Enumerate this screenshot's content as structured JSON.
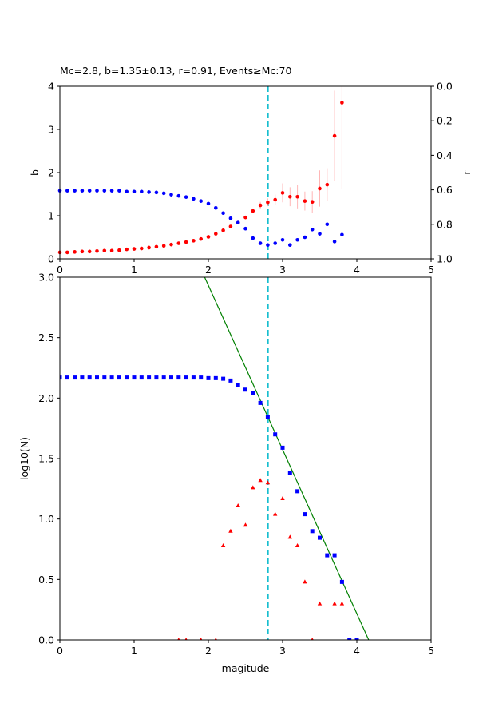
{
  "chart_data": [
    {
      "type": "scatter",
      "title": "Mc=2.8, b=1.35±0.13, r=0.91, Events≥Mc:70",
      "xlabel": "",
      "ylabel": "b",
      "ylabel_right": "r",
      "xlim": [
        0,
        5
      ],
      "ylim": [
        0,
        4
      ],
      "ylim_right": [
        1.0,
        0.0
      ],
      "x_ticks": [
        "0",
        "1",
        "2",
        "3",
        "4",
        "5"
      ],
      "y_ticks": [
        "0",
        "1",
        "2",
        "3",
        "4"
      ],
      "y_right_ticks": [
        "0.0",
        "0.2",
        "0.4",
        "0.6",
        "0.8",
        "1.0"
      ],
      "mc_line": {
        "x": 2.8,
        "color": "#17becf",
        "style": "dashed"
      },
      "series": [
        {
          "role": "b-value",
          "axis": "left",
          "color": "#ff0000",
          "error_color": "#ffb6b6",
          "x": [
            0.0,
            0.1,
            0.2,
            0.3,
            0.4,
            0.5,
            0.6,
            0.7,
            0.8,
            0.9,
            1.0,
            1.1,
            1.2,
            1.3,
            1.4,
            1.5,
            1.6,
            1.7,
            1.8,
            1.9,
            2.0,
            2.1,
            2.2,
            2.3,
            2.4,
            2.5,
            2.6,
            2.7,
            2.8,
            2.9,
            3.0,
            3.1,
            3.2,
            3.3,
            3.4,
            3.5,
            3.6,
            3.7,
            3.8
          ],
          "y": [
            0.15,
            0.15,
            0.16,
            0.17,
            0.17,
            0.18,
            0.19,
            0.19,
            0.2,
            0.22,
            0.23,
            0.24,
            0.26,
            0.28,
            0.3,
            0.33,
            0.36,
            0.39,
            0.42,
            0.46,
            0.51,
            0.58,
            0.66,
            0.75,
            0.84,
            0.96,
            1.11,
            1.24,
            1.31,
            1.37,
            1.53,
            1.44,
            1.44,
            1.34,
            1.32,
            1.63,
            1.72,
            2.85,
            3.62
          ],
          "err": [
            0,
            0,
            0,
            0,
            0,
            0,
            0,
            0,
            0,
            0,
            0,
            0,
            0,
            0,
            0,
            0,
            0,
            0,
            0,
            0,
            0,
            0,
            0,
            0,
            0,
            0,
            0,
            0.08,
            0.09,
            0.12,
            0.22,
            0.22,
            0.27,
            0.22,
            0.25,
            0.42,
            0.38,
            1.05,
            2.0
          ]
        },
        {
          "role": "r-value",
          "axis": "right",
          "color": "#0000ff",
          "x": [
            0.0,
            0.1,
            0.2,
            0.3,
            0.4,
            0.5,
            0.6,
            0.7,
            0.8,
            0.9,
            1.0,
            1.1,
            1.2,
            1.3,
            1.4,
            1.5,
            1.6,
            1.7,
            1.8,
            1.9,
            2.0,
            2.1,
            2.2,
            2.3,
            2.4,
            2.5,
            2.6,
            2.7,
            2.8,
            2.9,
            3.0,
            3.1,
            3.2,
            3.3,
            3.4,
            3.5,
            3.6,
            3.7,
            3.8
          ],
          "y": [
            0.605,
            0.605,
            0.605,
            0.605,
            0.605,
            0.605,
            0.605,
            0.605,
            0.605,
            0.61,
            0.61,
            0.61,
            0.613,
            0.615,
            0.62,
            0.628,
            0.635,
            0.642,
            0.652,
            0.665,
            0.68,
            0.705,
            0.735,
            0.765,
            0.79,
            0.825,
            0.88,
            0.91,
            0.92,
            0.91,
            0.89,
            0.92,
            0.89,
            0.875,
            0.83,
            0.855,
            0.8,
            0.9,
            0.86
          ]
        }
      ]
    },
    {
      "type": "scatter",
      "title": "",
      "xlabel": "magitude",
      "ylabel": "log10(N)",
      "xlim": [
        0,
        5
      ],
      "ylim": [
        0,
        3
      ],
      "x_ticks": [
        "0",
        "1",
        "2",
        "3",
        "4",
        "5"
      ],
      "y_ticks": [
        "0.0",
        "0.5",
        "1.0",
        "1.5",
        "2.0",
        "2.5",
        "3.0"
      ],
      "mc_line": {
        "x": 2.8,
        "color": "#17becf",
        "style": "dashed"
      },
      "fit_line": {
        "color": "#008000",
        "points": [
          [
            1.95,
            3.0
          ],
          [
            4.16,
            0.0
          ]
        ]
      },
      "series": [
        {
          "role": "cumulative",
          "marker": "square",
          "color": "#0000ff",
          "x": [
            0.0,
            0.1,
            0.2,
            0.3,
            0.4,
            0.5,
            0.6,
            0.7,
            0.8,
            0.9,
            1.0,
            1.1,
            1.2,
            1.3,
            1.4,
            1.5,
            1.6,
            1.7,
            1.8,
            1.9,
            2.0,
            2.1,
            2.2,
            2.3,
            2.4,
            2.5,
            2.6,
            2.7,
            2.8,
            2.9,
            3.0,
            3.1,
            3.2,
            3.3,
            3.4,
            3.5,
            3.6,
            3.7,
            3.8,
            3.9,
            4.0
          ],
          "y": [
            2.17,
            2.17,
            2.17,
            2.17,
            2.17,
            2.17,
            2.17,
            2.17,
            2.17,
            2.17,
            2.17,
            2.17,
            2.17,
            2.17,
            2.17,
            2.17,
            2.17,
            2.17,
            2.17,
            2.17,
            2.165,
            2.165,
            2.16,
            2.145,
            2.11,
            2.07,
            2.04,
            1.96,
            1.845,
            1.7,
            1.59,
            1.38,
            1.23,
            1.04,
            0.9,
            0.845,
            0.7,
            0.7,
            0.48,
            0.0,
            0.0
          ]
        },
        {
          "role": "non-cumulative",
          "marker": "triangle",
          "color": "#ff0000",
          "x": [
            1.6,
            1.7,
            1.9,
            2.1,
            2.2,
            2.3,
            2.4,
            2.5,
            2.6,
            2.7,
            2.8,
            2.9,
            3.0,
            3.1,
            3.2,
            3.3,
            3.4,
            3.5,
            3.7,
            3.8
          ],
          "y": [
            0.0,
            0.0,
            0.0,
            0.0,
            0.78,
            0.9,
            1.11,
            0.95,
            1.26,
            1.32,
            1.3,
            1.04,
            1.17,
            0.85,
            0.78,
            0.48,
            0.0,
            0.3,
            0.3,
            0.3
          ]
        }
      ]
    }
  ]
}
